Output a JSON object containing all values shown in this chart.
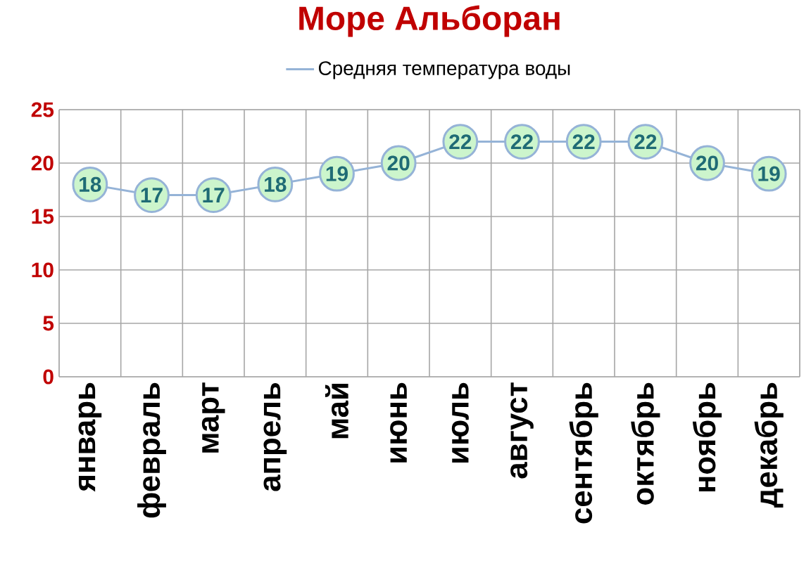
{
  "chart_data": {
    "type": "line",
    "title": "Море Альборан",
    "categories": [
      "январь",
      "февраль",
      "март",
      "апрель",
      "май",
      "июнь",
      "июль",
      "август",
      "сентябрь",
      "октябрь",
      "ноябрь",
      "декабрь"
    ],
    "series": [
      {
        "name": "Средняя температура воды",
        "color": "#95b3d7",
        "values": [
          18,
          17,
          17,
          18,
          19,
          20,
          22,
          22,
          22,
          22,
          20,
          19
        ]
      }
    ],
    "ylim": [
      0,
      25
    ],
    "yticks": [
      0,
      5,
      10,
      15,
      20,
      25
    ],
    "grid": true,
    "legend": "top",
    "marker": "circle",
    "data_labels": true
  }
}
